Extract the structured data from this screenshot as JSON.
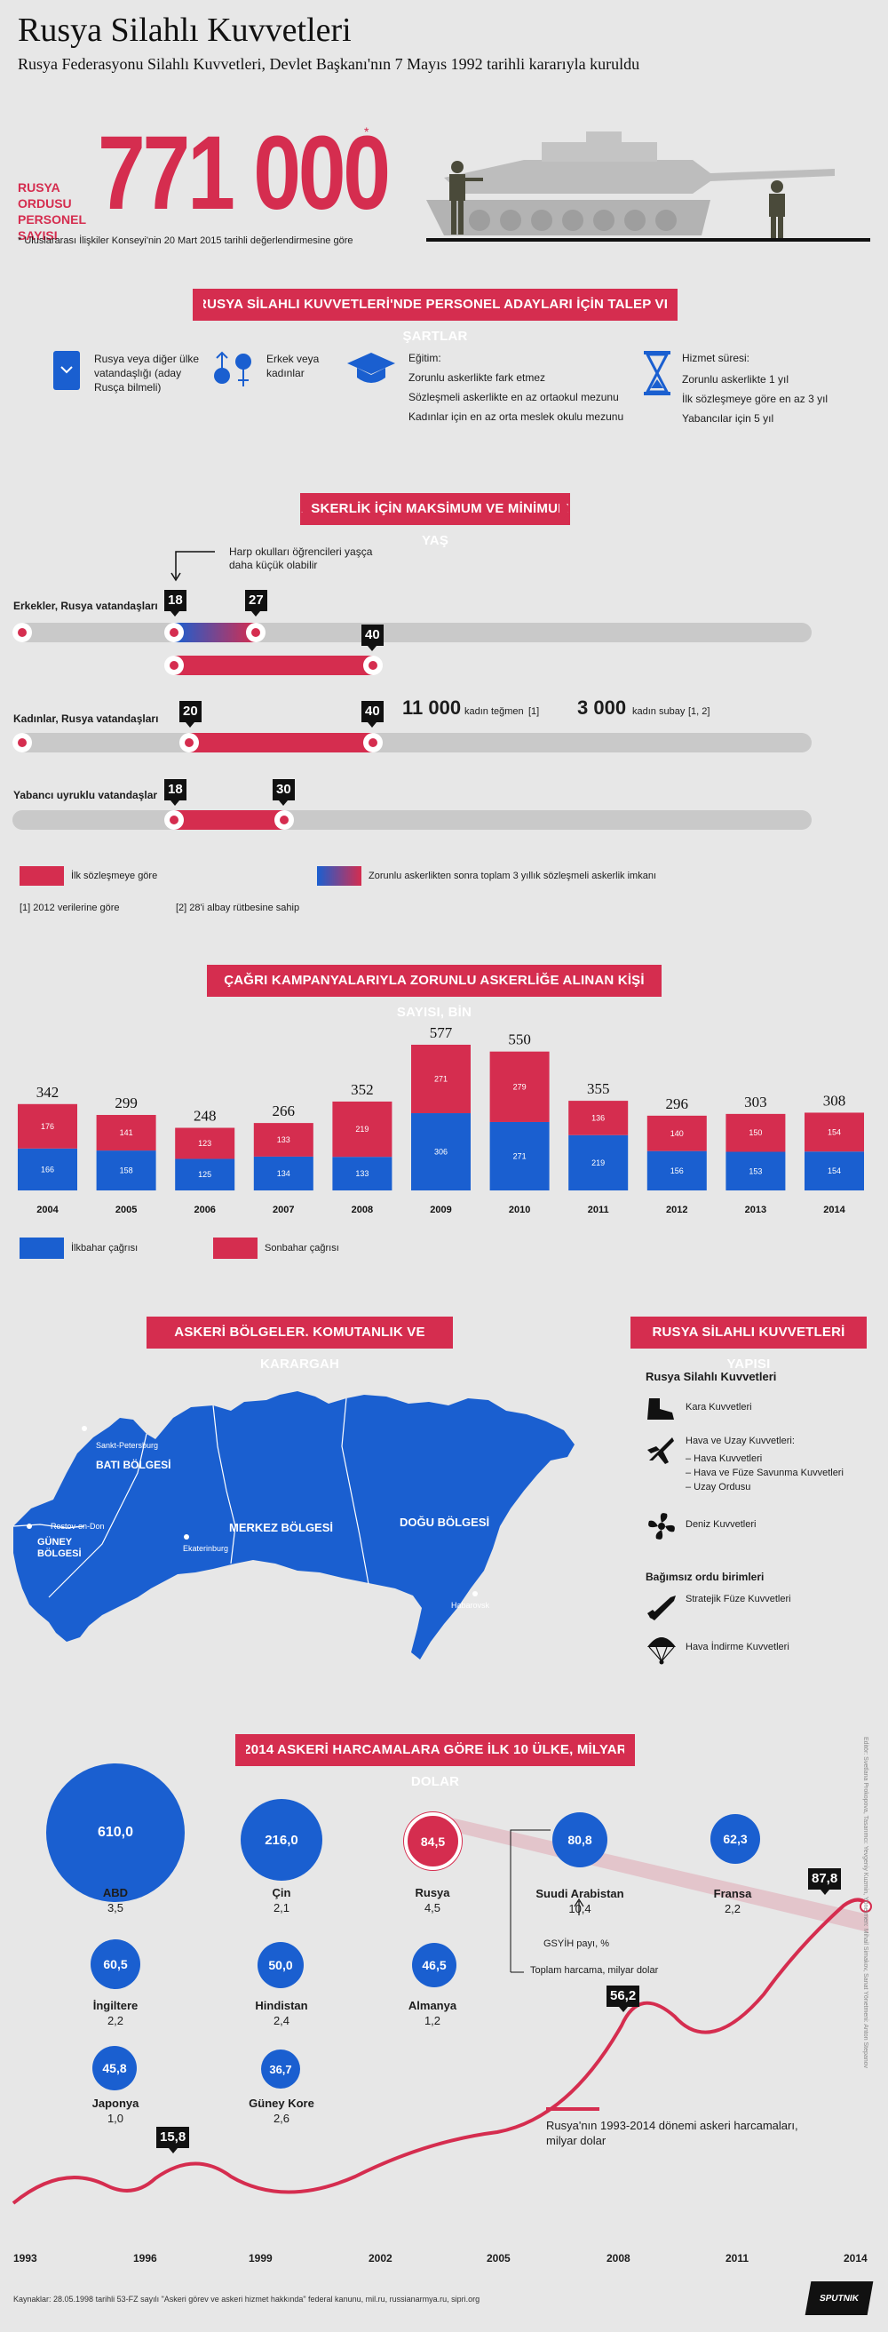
{
  "header": {
    "title": "Rusya Silahlı Kuvvetleri",
    "subtitle": "Rusya Federasyonu Silahlı Kuvvetleri, Devlet Başkanı'nın 7 Mayıs 1992 tarihli kararıyla kuruldu"
  },
  "hero": {
    "label": "RUSYA ORDUSU PERSONEL SAYISI",
    "number": "771 000",
    "asterisk": "*",
    "footnote": "* Uluslararası İlişkiler Konseyi'nin 20 Mart 2015 tarihli değerlendirmesine göre"
  },
  "requirements": {
    "title": "RUSYA SİLAHLI KUVVETLERİ'NDE PERSONEL ADAYLARI İÇİN TALEP VE ŞARTLAR",
    "citizenship": "Rusya veya diğer ülke vatandaşlığı (aday Rusça bilmeli)",
    "gender": "Erkek veya kadınlar",
    "education_title": "Eğitim:",
    "education_items": [
      "Zorunlu askerlikte fark etmez",
      "Sözleşmeli askerlikte en az ortaokul mezunu",
      "Kadınlar için en az orta meslek okulu mezunu"
    ],
    "service_title": "Hizmet süresi:",
    "service_items": [
      "Zorunlu askerlikte 1 yıl",
      "İlk sözleşmeye göre en az 3 yıl",
      "Yabancılar için 5 yıl"
    ]
  },
  "ages": {
    "title": "ASKERLİK İÇİN MAKSİMUM VE MİNİMUM YAŞ",
    "note": "Harp okulları öğrencileri yaşça daha küçük olabilir",
    "rows": [
      {
        "label": "Erkekler, Rusya vatandaşları",
        "min": "18",
        "max": "27",
        "contract_max": "40"
      },
      {
        "label": "Kadınlar, Rusya vatandaşları",
        "min": "20",
        "max": "40"
      },
      {
        "label": "Yabancı uyruklu vatandaşlar",
        "min": "18",
        "max": "30"
      }
    ],
    "women_officers_num": "11 000",
    "women_officers_label": "kadın teğmen",
    "women_officers_ref": "[1]",
    "women_nco_num": "3 000",
    "women_nco_label": "kadın subay",
    "women_nco_ref": "[1, 2]",
    "legend_contract": "İlk sözleşmeye göre",
    "legend_gradient": "Zorunlu askerlikten sonra toplam 3 yıllık sözleşmeli askerlik imkanı",
    "ref1": "[1] 2012 verilerine göre",
    "ref2": "[2] 28'i albay rütbesine sahip"
  },
  "chart_data": {
    "type": "bar",
    "title": "ÇAĞRI KAMPANYALARIYLA ZORUNLU ASKERLİĞE ALINAN KİŞİ SAYISI, BİN",
    "categories": [
      "2004",
      "2005",
      "2006",
      "2007",
      "2008",
      "2009",
      "2010",
      "2011",
      "2012",
      "2013",
      "2014"
    ],
    "totals": [
      "342",
      "299",
      "248",
      "266",
      "352",
      "577",
      "550",
      "355",
      "296",
      "303",
      "308"
    ],
    "series": [
      {
        "name": "İlkbahar çağrısı",
        "color": "#1a5fd0",
        "values": [
          166,
          158,
          125,
          134,
          133,
          306,
          271,
          219,
          156,
          153,
          154
        ]
      },
      {
        "name": "Sonbahar çağrısı",
        "color": "#d52d4f",
        "values": [
          176,
          141,
          123,
          133,
          219,
          271,
          279,
          136,
          140,
          150,
          154
        ]
      }
    ],
    "ylim": [
      0,
      577
    ]
  },
  "regions": {
    "title": "ASKERİ BÖLGELER. KOMUTANLIK VE KARARGAH",
    "west": "BATI BÖLGESİ",
    "south": "GÜNEY BÖLGESİ",
    "central": "MERKEZ BÖLGESİ",
    "east": "DOĞU BÖLGESİ",
    "cities": [
      "Sankt-Petersburg",
      "Rostov-on-Don",
      "Ekaterinburg",
      "Habarovsk"
    ]
  },
  "structure": {
    "title": "RUSYA SİLAHLI KUVVETLERİ YAPISI",
    "heading": "Rusya Silahlı Kuvvetleri",
    "land": "Kara Kuvvetleri",
    "air_title": "Hava ve Uzay Kuvvetleri:",
    "air_items": [
      "– Hava Kuvvetleri",
      "– Hava ve Füze Savunma Kuvvetleri",
      "– Uzay Ordusu"
    ],
    "navy": "Deniz Kuvvetleri",
    "independent": "Bağımsız ordu birimleri",
    "missile": "Stratejik Füze Kuvvetleri",
    "airborne": "Hava İndirme Kuvvetleri"
  },
  "spending": {
    "title": "2014 ASKERİ HARCAMALARA GÖRE İLK 10 ÜLKE, MİLYAR DOLAR",
    "countries": [
      {
        "name": "ABD",
        "value": "610,0",
        "share": "3,5"
      },
      {
        "name": "Çin",
        "value": "216,0",
        "share": "2,1"
      },
      {
        "name": "Rusya",
        "value": "84,5",
        "share": "4,5"
      },
      {
        "name": "Suudi Arabistan",
        "value": "80,8",
        "share": "10,4"
      },
      {
        "name": "Fransa",
        "value": "62,3",
        "share": "2,2"
      },
      {
        "name": "İngiltere",
        "value": "60,5",
        "share": "2,2"
      },
      {
        "name": "Hindistan",
        "value": "50,0",
        "share": "2,4"
      },
      {
        "name": "Almanya",
        "value": "46,5",
        "share": "1,2"
      },
      {
        "name": "Japonya",
        "value": "45,8",
        "share": "1,0"
      },
      {
        "name": "Güney Kore",
        "value": "36,7",
        "share": "2,6"
      }
    ],
    "gdp_label": "GSYİH payı, %",
    "total_label": "Toplam harcama, milyar dolar",
    "line_legend": "Rusya'nın 1993-2014 dönemi askeri harcamaları, milyar dolar",
    "peaks": [
      "15,8",
      "56,2",
      "87,8"
    ],
    "years": [
      "1993",
      "1996",
      "1999",
      "2002",
      "2005",
      "2008",
      "2011",
      "2014"
    ]
  },
  "footer": {
    "sources": "Kaynaklar: 28.05.1998 tarihli 53-FZ sayılı \"Askeri görev ve askeri hizmet hakkında\" federal kanunu, mil.ru, russianarmya.ru, sipri.org",
    "credits": "Editör: Svetlana Prokopova, Tasarımcı: Yevgeniy Kuzmin, Yönetmen: Mihail Simakov, Sanat Yönetmeni: Anton Stepanov",
    "brand": "SPUTNIK"
  }
}
